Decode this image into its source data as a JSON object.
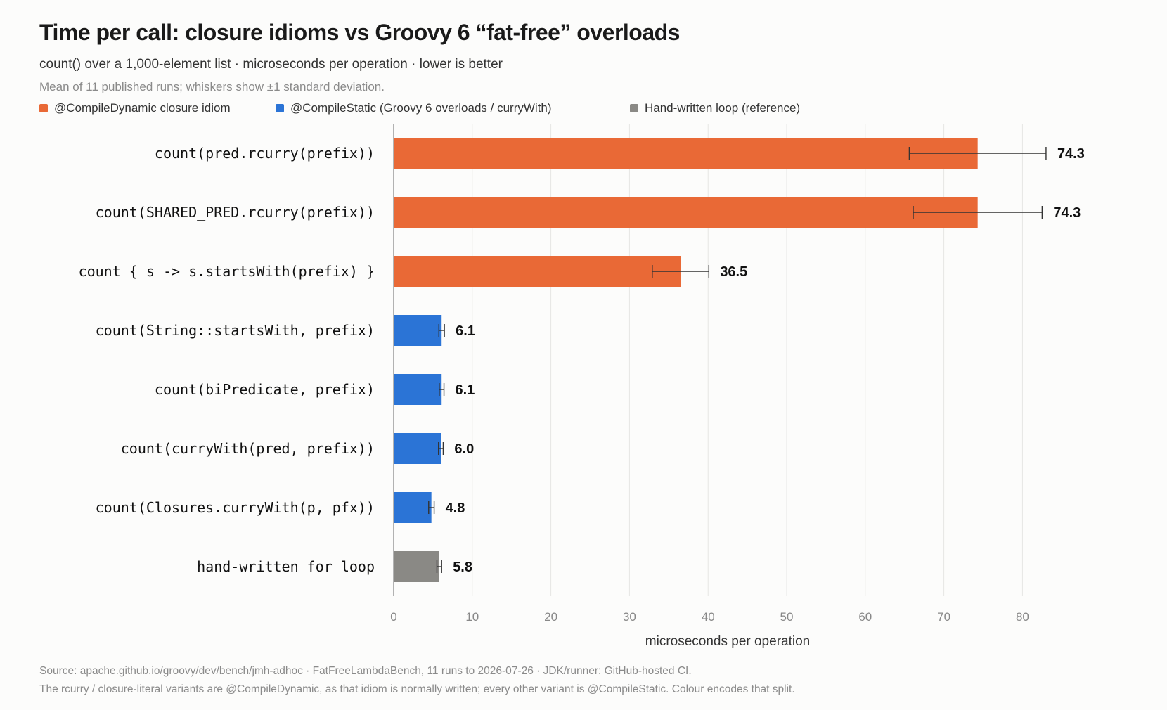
{
  "header": {
    "title": "Time per call: closure idioms vs Groovy 6 “fat-free” overloads",
    "subtitle": "count() over a 1,000-element list · microseconds per operation · lower is better",
    "note": "Mean of 11 published runs; whiskers show ±1 standard deviation."
  },
  "legend": [
    {
      "label": "@CompileDynamic closure idiom",
      "color": "#e96936"
    },
    {
      "label": "@CompileStatic (Groovy 6 overloads / curryWith)",
      "color": "#2b74d6"
    },
    {
      "label": "Hand-written loop (reference)",
      "color": "#8a8985"
    }
  ],
  "footer": {
    "line1": "Source: apache.github.io/groovy/dev/bench/jmh-adhoc · FatFreeLambdaBench, 11 runs to 2026-07-26 · JDK/runner: GitHub-hosted CI.",
    "line2": "The rcurry / closure-literal variants are @CompileDynamic, as that idiom is normally written; every other variant is @CompileStatic. Colour encodes that split."
  },
  "chart_data": {
    "type": "bar",
    "orientation": "horizontal",
    "title": "Time per call: closure idioms vs Groovy 6 “fat-free” overloads",
    "xlabel": "microseconds per operation",
    "ylabel": "",
    "xlim": [
      0,
      85
    ],
    "xticks": [
      0,
      10,
      20,
      30,
      40,
      50,
      60,
      70,
      80
    ],
    "grid": true,
    "legend_position": "top-left",
    "categories": [
      "count(pred.rcurry(prefix))",
      "count(SHARED_PRED.rcurry(prefix))",
      "count { s -> s.startsWith(prefix) }",
      "count(String::startsWith, prefix)",
      "count(biPredicate, prefix)",
      "count(curryWith(pred, prefix))",
      "count(Closures.curryWith(p, pfx))",
      "hand-written for loop"
    ],
    "values": [
      74.3,
      74.3,
      36.5,
      6.1,
      6.1,
      6.0,
      4.8,
      5.8
    ],
    "value_labels": [
      "74.3",
      "74.3",
      "36.5",
      "6.1",
      "6.1",
      "6.0",
      "4.8",
      "5.8"
    ],
    "error": [
      8.7,
      8.2,
      3.6,
      0.35,
      0.3,
      0.3,
      0.35,
      0.3
    ],
    "group": [
      0,
      0,
      0,
      1,
      1,
      1,
      1,
      2
    ]
  }
}
